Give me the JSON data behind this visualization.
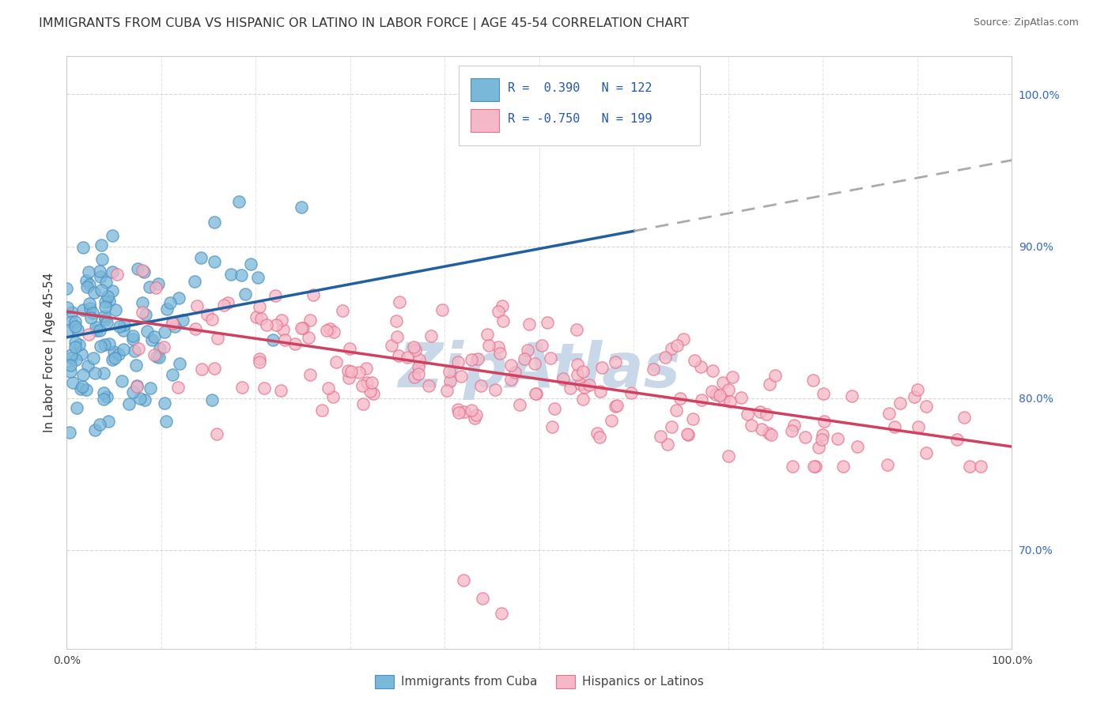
{
  "title": "IMMIGRANTS FROM CUBA VS HISPANIC OR LATINO IN LABOR FORCE | AGE 45-54 CORRELATION CHART",
  "source": "Source: ZipAtlas.com",
  "ylabel": "In Labor Force | Age 45-54",
  "legend_label_blue": "Immigrants from Cuba",
  "legend_label_pink": "Hispanics or Latinos",
  "xlim": [
    0.0,
    1.0
  ],
  "ylim": [
    0.635,
    1.025
  ],
  "xticks": [
    0.0,
    0.1,
    0.2,
    0.3,
    0.4,
    0.5,
    0.6,
    0.7,
    0.8,
    0.9,
    1.0
  ],
  "yticks": [
    0.7,
    0.8,
    0.9,
    1.0
  ],
  "xticklabels": [
    "0.0%",
    "",
    "",
    "",
    "",
    "",
    "",
    "",
    "",
    "",
    "100.0%"
  ],
  "yticklabels_right": [
    "70.0%",
    "80.0%",
    "90.0%",
    "100.0%"
  ],
  "blue_color": "#7ab8d9",
  "blue_edge_color": "#4a90c4",
  "pink_color": "#f5b8c8",
  "pink_edge_color": "#e8708a",
  "blue_line_color": "#2060a0",
  "pink_line_color": "#d04060",
  "dashed_line_color": "#aaaaaa",
  "background_color": "#ffffff",
  "watermark_color": "#c8d8e8",
  "grid_color": "#cccccc",
  "right_tick_color": "#3366cc",
  "title_color": "#333333",
  "title_fontsize": 11.5,
  "tick_fontsize": 10,
  "legend_fontsize": 11,
  "blue_R": 0.39,
  "pink_R": -0.75,
  "blue_N": 122,
  "pink_N": 199,
  "blue_line_x0": 0.0,
  "blue_line_y0": 0.84,
  "blue_line_x1": 0.6,
  "blue_line_y1": 0.91,
  "pink_line_x0": 0.0,
  "pink_line_y0": 0.857,
  "pink_line_x1": 1.0,
  "pink_line_y1": 0.768
}
